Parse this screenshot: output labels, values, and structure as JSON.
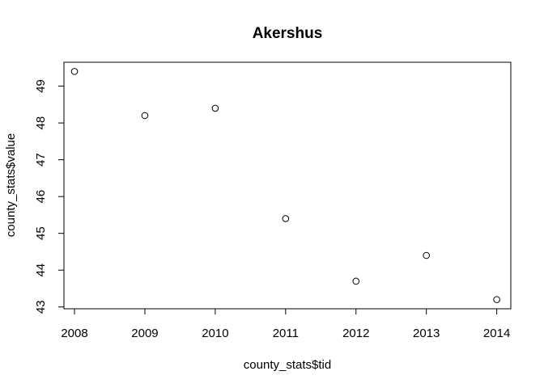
{
  "chart_data": {
    "type": "scatter",
    "title": "Akershus",
    "xlabel": "county_stats$tid",
    "ylabel": "county_stats$value",
    "xlim": [
      2007.85,
      2014.2
    ],
    "ylim": [
      42.95,
      49.65
    ],
    "xticks": [
      2008,
      2009,
      2010,
      2011,
      2012,
      2013,
      2014
    ],
    "yticks": [
      43,
      44,
      45,
      46,
      47,
      48,
      49
    ],
    "x": [
      2008,
      2009,
      2010,
      2011,
      2012,
      2013,
      2014
    ],
    "y": [
      49.4,
      48.2,
      48.4,
      45.4,
      43.7,
      44.4,
      43.2
    ],
    "marker": "open-circle",
    "grid": false,
    "legend": "none"
  }
}
